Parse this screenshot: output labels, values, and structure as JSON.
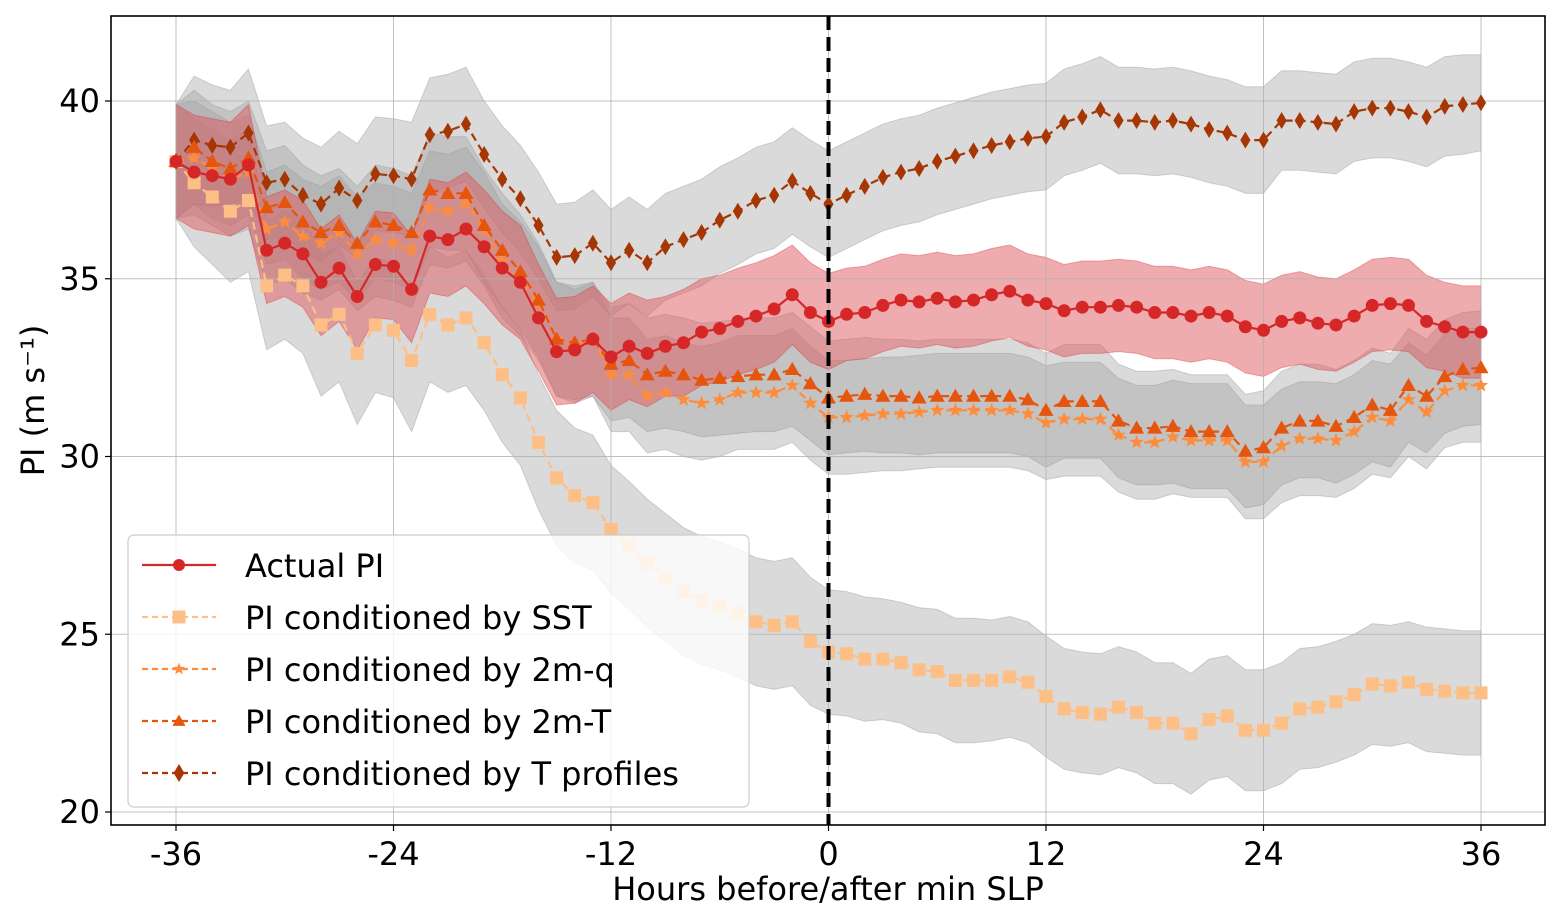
{
  "chart_data": {
    "type": "line",
    "title": "",
    "xlabel": "Hours before/after min SLP",
    "ylabel": "PI (m s⁻¹)",
    "xlim": [
      -39.5,
      39.5
    ],
    "ylim": [
      19.6,
      42.4
    ],
    "xticks": [
      -36,
      -24,
      -12,
      0,
      12,
      24,
      36
    ],
    "xtick_labels": [
      "-36",
      "-24",
      "-12",
      "0",
      "12",
      "24",
      "36"
    ],
    "yticks": [
      20,
      25,
      30,
      35,
      40
    ],
    "ytick_labels": [
      "20",
      "25",
      "30",
      "35",
      "40"
    ],
    "grid": true,
    "vline": {
      "x": 0,
      "style": "dashed",
      "color": "#000000"
    },
    "legend": {
      "placement": "lower-left"
    },
    "x": [
      -36,
      -35,
      -34,
      -33,
      -32,
      -31,
      -30,
      -29,
      -28,
      -27,
      -26,
      -25,
      -24,
      -23,
      -22,
      -21,
      -20,
      -19,
      -18,
      -17,
      -16,
      -15,
      -14,
      -13,
      -12,
      -11,
      -10,
      -9,
      -8,
      -7,
      -6,
      -5,
      -4,
      -3,
      -2,
      -1,
      0,
      1,
      2,
      3,
      4,
      5,
      6,
      7,
      8,
      9,
      10,
      11,
      12,
      13,
      14,
      15,
      16,
      17,
      18,
      19,
      20,
      21,
      22,
      23,
      24,
      25,
      26,
      27,
      28,
      29,
      30,
      31,
      32,
      33,
      34,
      35,
      36
    ],
    "series": [
      {
        "name": "Actual PI",
        "color": "#d62728",
        "band_color": "#e57f84",
        "marker": "circle",
        "linestyle": "solid",
        "values": [
          38.3,
          38.0,
          37.9,
          37.8,
          38.2,
          35.8,
          36.0,
          35.7,
          34.9,
          35.3,
          34.5,
          35.4,
          35.35,
          34.7,
          36.2,
          36.1,
          36.4,
          35.9,
          35.3,
          34.9,
          33.9,
          32.95,
          33.0,
          33.3,
          32.8,
          33.1,
          32.9,
          33.1,
          33.2,
          33.5,
          33.6,
          33.8,
          33.95,
          34.15,
          34.55,
          34.05,
          33.8,
          34.0,
          34.05,
          34.25,
          34.4,
          34.35,
          34.45,
          34.35,
          34.4,
          34.55,
          34.65,
          34.4,
          34.3,
          34.1,
          34.2,
          34.2,
          34.25,
          34.2,
          34.05,
          34.05,
          33.95,
          34.05,
          33.95,
          33.65,
          33.55,
          33.8,
          33.9,
          33.75,
          33.7,
          33.95,
          34.25,
          34.3,
          34.25,
          33.8,
          33.65,
          33.5,
          33.5
        ],
        "band_halfwidth": [
          1.6,
          1.6,
          1.6,
          1.6,
          1.7,
          1.5,
          1.5,
          1.5,
          1.5,
          1.5,
          1.5,
          1.5,
          1.5,
          1.5,
          1.6,
          1.6,
          1.6,
          1.6,
          1.6,
          1.6,
          1.5,
          1.5,
          1.5,
          1.5,
          1.5,
          1.5,
          1.5,
          1.4,
          1.5,
          1.5,
          1.5,
          1.5,
          1.5,
          1.5,
          1.4,
          1.4,
          1.35,
          1.3,
          1.3,
          1.3,
          1.3,
          1.3,
          1.3,
          1.3,
          1.3,
          1.3,
          1.3,
          1.3,
          1.3,
          1.3,
          1.3,
          1.3,
          1.3,
          1.3,
          1.3,
          1.3,
          1.3,
          1.3,
          1.3,
          1.3,
          1.3,
          1.3,
          1.3,
          1.3,
          1.3,
          1.3,
          1.3,
          1.3,
          1.3,
          1.3,
          1.25,
          1.3,
          1.3
        ]
      },
      {
        "name": "PI conditioned by SST",
        "color": "#fdbf85",
        "band_color": "#bdbdbd",
        "marker": "square",
        "linestyle": "dashed",
        "values": [
          38.3,
          37.7,
          37.3,
          36.9,
          37.2,
          34.8,
          35.1,
          34.8,
          33.7,
          34.0,
          32.9,
          33.7,
          33.55,
          32.7,
          34.0,
          33.7,
          33.9,
          33.2,
          32.3,
          31.65,
          30.4,
          29.4,
          28.9,
          28.7,
          27.95,
          27.5,
          27.0,
          26.6,
          26.2,
          25.95,
          25.8,
          25.6,
          25.35,
          25.25,
          25.35,
          24.8,
          24.5,
          24.45,
          24.3,
          24.3,
          24.2,
          24.0,
          23.95,
          23.7,
          23.7,
          23.7,
          23.8,
          23.65,
          23.25,
          22.9,
          22.8,
          22.75,
          22.95,
          22.8,
          22.5,
          22.5,
          22.2,
          22.6,
          22.7,
          22.3,
          22.3,
          22.5,
          22.9,
          22.95,
          23.1,
          23.3,
          23.6,
          23.55,
          23.65,
          23.45,
          23.4,
          23.35,
          23.35
        ],
        "band_halfwidth": [
          1.6,
          1.8,
          1.9,
          2.0,
          2.0,
          1.8,
          1.8,
          1.9,
          2.0,
          1.9,
          2.0,
          1.9,
          1.9,
          2.0,
          1.9,
          1.9,
          1.9,
          1.9,
          1.9,
          1.9,
          1.9,
          1.9,
          1.9,
          1.9,
          1.8,
          1.8,
          1.8,
          1.8,
          1.8,
          1.8,
          1.8,
          1.8,
          1.8,
          1.8,
          1.8,
          1.8,
          1.75,
          1.75,
          1.75,
          1.7,
          1.7,
          1.75,
          1.75,
          1.75,
          1.75,
          1.7,
          1.7,
          1.7,
          1.7,
          1.7,
          1.7,
          1.7,
          1.7,
          1.7,
          1.7,
          1.7,
          1.7,
          1.7,
          1.7,
          1.7,
          1.7,
          1.7,
          1.7,
          1.7,
          1.7,
          1.7,
          1.7,
          1.7,
          1.7,
          1.75,
          1.75,
          1.75,
          1.75
        ]
      },
      {
        "name": "PI conditioned by 2m-q",
        "color": "#fd8d3c",
        "band_color": "#bdbdbd",
        "marker": "star",
        "linestyle": "dashed",
        "values": [
          38.3,
          38.4,
          38.1,
          37.8,
          38.0,
          36.4,
          36.6,
          36.2,
          36.0,
          36.3,
          35.7,
          36.1,
          36.0,
          35.8,
          37.0,
          36.9,
          37.1,
          36.4,
          35.5,
          35.0,
          34.3,
          33.3,
          33.1,
          33.3,
          32.3,
          32.3,
          31.7,
          31.8,
          31.6,
          31.5,
          31.6,
          31.8,
          31.8,
          31.8,
          32.0,
          31.5,
          31.1,
          31.1,
          31.15,
          31.2,
          31.2,
          31.25,
          31.3,
          31.3,
          31.3,
          31.3,
          31.3,
          31.2,
          30.95,
          31.05,
          31.05,
          31.05,
          30.6,
          30.4,
          30.4,
          30.55,
          30.45,
          30.45,
          30.45,
          29.85,
          29.85,
          30.3,
          30.5,
          30.5,
          30.45,
          30.7,
          31.1,
          31.0,
          31.6,
          31.25,
          31.85,
          32.0,
          32.0
        ],
        "band_halfwidth": [
          1.6,
          1.6,
          1.6,
          1.6,
          1.6,
          1.6,
          1.6,
          1.6,
          1.6,
          1.6,
          1.6,
          1.6,
          1.6,
          1.6,
          1.6,
          1.6,
          1.6,
          1.6,
          1.6,
          1.6,
          1.6,
          1.6,
          1.6,
          1.6,
          1.6,
          1.6,
          1.6,
          1.6,
          1.6,
          1.6,
          1.6,
          1.6,
          1.6,
          1.6,
          1.6,
          1.6,
          1.6,
          1.6,
          1.6,
          1.6,
          1.6,
          1.6,
          1.6,
          1.6,
          1.6,
          1.6,
          1.6,
          1.6,
          1.6,
          1.6,
          1.6,
          1.6,
          1.6,
          1.6,
          1.6,
          1.6,
          1.6,
          1.6,
          1.6,
          1.6,
          1.6,
          1.6,
          1.6,
          1.6,
          1.6,
          1.6,
          1.6,
          1.6,
          1.6,
          1.6,
          1.6,
          1.6,
          1.6
        ]
      },
      {
        "name": "PI conditioned by 2m-T",
        "color": "#e6550d",
        "band_color": "#bdbdbd",
        "marker": "triangle",
        "linestyle": "dashed",
        "values": [
          38.3,
          38.7,
          38.3,
          38.1,
          38.4,
          37.0,
          37.15,
          36.6,
          36.3,
          36.5,
          36.0,
          36.6,
          36.5,
          36.3,
          37.5,
          37.4,
          37.4,
          36.5,
          35.8,
          35.2,
          34.4,
          33.3,
          33.2,
          33.3,
          32.6,
          32.7,
          32.3,
          32.4,
          32.3,
          32.15,
          32.2,
          32.25,
          32.3,
          32.3,
          32.45,
          32.05,
          31.65,
          31.7,
          31.75,
          31.7,
          31.7,
          31.65,
          31.7,
          31.7,
          31.7,
          31.7,
          31.7,
          31.6,
          31.3,
          31.55,
          31.55,
          31.55,
          31.0,
          30.8,
          30.8,
          30.85,
          30.7,
          30.7,
          30.7,
          30.15,
          30.25,
          30.8,
          31.0,
          31.0,
          30.85,
          31.1,
          31.45,
          31.3,
          32.0,
          31.7,
          32.25,
          32.45,
          32.5
        ],
        "band_halfwidth": [
          1.6,
          1.6,
          1.6,
          1.6,
          1.6,
          1.6,
          1.6,
          1.6,
          1.6,
          1.6,
          1.6,
          1.6,
          1.6,
          1.6,
          1.6,
          1.6,
          1.6,
          1.6,
          1.6,
          1.6,
          1.6,
          1.6,
          1.6,
          1.6,
          1.6,
          1.6,
          1.6,
          1.6,
          1.6,
          1.6,
          1.6,
          1.6,
          1.6,
          1.6,
          1.6,
          1.6,
          1.6,
          1.6,
          1.6,
          1.6,
          1.6,
          1.6,
          1.6,
          1.6,
          1.6,
          1.6,
          1.6,
          1.6,
          1.6,
          1.6,
          1.6,
          1.6,
          1.6,
          1.6,
          1.6,
          1.6,
          1.6,
          1.6,
          1.6,
          1.6,
          1.6,
          1.6,
          1.6,
          1.6,
          1.6,
          1.6,
          1.6,
          1.6,
          1.6,
          1.6,
          1.6,
          1.6,
          1.6
        ]
      },
      {
        "name": "PI conditioned by T profiles",
        "color": "#a63603",
        "band_color": "#bdbdbd",
        "marker": "diamond",
        "linestyle": "dashed",
        "values": [
          38.3,
          38.9,
          38.75,
          38.7,
          39.1,
          37.7,
          37.8,
          37.35,
          37.1,
          37.55,
          37.2,
          37.95,
          37.9,
          37.8,
          39.05,
          39.15,
          39.35,
          38.5,
          37.8,
          37.25,
          36.5,
          35.6,
          35.65,
          36.0,
          35.45,
          35.8,
          35.45,
          35.9,
          36.1,
          36.3,
          36.65,
          36.9,
          37.2,
          37.35,
          37.75,
          37.4,
          37.1,
          37.35,
          37.6,
          37.85,
          38.0,
          38.1,
          38.3,
          38.45,
          38.6,
          38.75,
          38.85,
          38.95,
          39.0,
          39.4,
          39.55,
          39.75,
          39.45,
          39.45,
          39.4,
          39.45,
          39.35,
          39.2,
          39.1,
          38.9,
          38.9,
          39.45,
          39.45,
          39.4,
          39.35,
          39.7,
          39.8,
          39.8,
          39.7,
          39.55,
          39.85,
          39.9,
          39.95
        ],
        "band_halfwidth": [
          1.6,
          1.8,
          1.7,
          1.6,
          1.8,
          1.6,
          1.6,
          1.6,
          1.6,
          1.6,
          1.6,
          1.6,
          1.6,
          1.6,
          1.6,
          1.6,
          1.6,
          1.5,
          1.5,
          1.5,
          1.5,
          1.5,
          1.5,
          1.5,
          1.5,
          1.5,
          1.5,
          1.5,
          1.5,
          1.5,
          1.5,
          1.5,
          1.5,
          1.5,
          1.5,
          1.5,
          1.5,
          1.5,
          1.5,
          1.5,
          1.5,
          1.5,
          1.5,
          1.5,
          1.5,
          1.5,
          1.5,
          1.5,
          1.5,
          1.5,
          1.5,
          1.5,
          1.5,
          1.5,
          1.5,
          1.5,
          1.5,
          1.5,
          1.5,
          1.5,
          1.5,
          1.4,
          1.4,
          1.4,
          1.4,
          1.4,
          1.4,
          1.4,
          1.4,
          1.4,
          1.4,
          1.4,
          1.35
        ]
      }
    ]
  }
}
